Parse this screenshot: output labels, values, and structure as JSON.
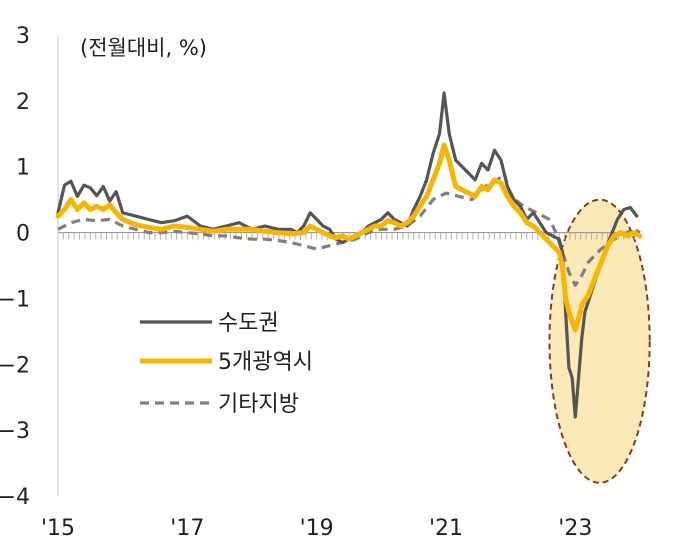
{
  "chart_data": {
    "type": "line",
    "unit_label": "(전월대비, %)",
    "ylim": [
      -4,
      3
    ],
    "y_ticks": [
      3,
      2,
      1,
      0,
      -1,
      -2,
      -3,
      -4
    ],
    "x_start": 2015.0,
    "x_end": 2024.0,
    "x_ticks": [
      {
        "x": 2015,
        "label": "'15"
      },
      {
        "x": 2017,
        "label": "'17"
      },
      {
        "x": 2019,
        "label": "'19"
      },
      {
        "x": 2021,
        "label": "'21"
      },
      {
        "x": 2023,
        "label": "'23"
      }
    ],
    "grid": false,
    "legend_position": "bottom-left",
    "highlight": {
      "shape": "ellipse",
      "color": "#fbe9b8",
      "x_range": [
        2022.6,
        2024.15
      ],
      "y_range": [
        -3.8,
        0.5
      ]
    },
    "series": [
      {
        "name": "수도권",
        "color": "#555555",
        "style": "solid",
        "points": [
          [
            2015.0,
            0.3
          ],
          [
            2015.1,
            0.72
          ],
          [
            2015.2,
            0.78
          ],
          [
            2015.3,
            0.55
          ],
          [
            2015.4,
            0.72
          ],
          [
            2015.5,
            0.68
          ],
          [
            2015.6,
            0.56
          ],
          [
            2015.7,
            0.7
          ],
          [
            2015.8,
            0.48
          ],
          [
            2015.9,
            0.62
          ],
          [
            2016.0,
            0.3
          ],
          [
            2016.2,
            0.25
          ],
          [
            2016.4,
            0.2
          ],
          [
            2016.6,
            0.15
          ],
          [
            2016.8,
            0.18
          ],
          [
            2017.0,
            0.25
          ],
          [
            2017.2,
            0.1
          ],
          [
            2017.4,
            0.05
          ],
          [
            2017.6,
            0.1
          ],
          [
            2017.8,
            0.15
          ],
          [
            2018.0,
            0.05
          ],
          [
            2018.2,
            0.1
          ],
          [
            2018.4,
            0.05
          ],
          [
            2018.6,
            0.05
          ],
          [
            2018.7,
            0.0
          ],
          [
            2018.8,
            0.1
          ],
          [
            2018.9,
            0.3
          ],
          [
            2019.0,
            0.2
          ],
          [
            2019.1,
            0.1
          ],
          [
            2019.2,
            0.05
          ],
          [
            2019.3,
            -0.1
          ],
          [
            2019.4,
            -0.15
          ],
          [
            2019.5,
            -0.1
          ],
          [
            2019.6,
            -0.05
          ],
          [
            2019.7,
            0.0
          ],
          [
            2019.8,
            0.1
          ],
          [
            2019.9,
            0.15
          ],
          [
            2020.0,
            0.2
          ],
          [
            2020.1,
            0.3
          ],
          [
            2020.2,
            0.2
          ],
          [
            2020.3,
            0.15
          ],
          [
            2020.4,
            0.1
          ],
          [
            2020.5,
            0.35
          ],
          [
            2020.6,
            0.55
          ],
          [
            2020.7,
            0.8
          ],
          [
            2020.8,
            1.2
          ],
          [
            2020.9,
            1.5
          ],
          [
            2020.97,
            2.12
          ],
          [
            2021.05,
            1.5
          ],
          [
            2021.15,
            1.1
          ],
          [
            2021.25,
            1.0
          ],
          [
            2021.35,
            0.9
          ],
          [
            2021.45,
            0.8
          ],
          [
            2021.55,
            1.05
          ],
          [
            2021.65,
            0.95
          ],
          [
            2021.75,
            1.25
          ],
          [
            2021.85,
            1.1
          ],
          [
            2021.95,
            0.7
          ],
          [
            2022.05,
            0.5
          ],
          [
            2022.15,
            0.4
          ],
          [
            2022.25,
            0.2
          ],
          [
            2022.35,
            0.3
          ],
          [
            2022.45,
            0.15
          ],
          [
            2022.55,
            0.0
          ],
          [
            2022.65,
            -0.05
          ],
          [
            2022.75,
            -0.1
          ],
          [
            2022.8,
            -0.3
          ],
          [
            2022.85,
            -1.2
          ],
          [
            2022.9,
            -2.05
          ],
          [
            2022.95,
            -2.2
          ],
          [
            2023.0,
            -2.8
          ],
          [
            2023.05,
            -2.2
          ],
          [
            2023.1,
            -1.6
          ],
          [
            2023.15,
            -1.2
          ],
          [
            2023.25,
            -0.9
          ],
          [
            2023.35,
            -0.6
          ],
          [
            2023.45,
            -0.3
          ],
          [
            2023.55,
            -0.05
          ],
          [
            2023.65,
            0.2
          ],
          [
            2023.75,
            0.35
          ],
          [
            2023.85,
            0.38
          ],
          [
            2023.95,
            0.25
          ]
        ]
      },
      {
        "name": "5개광역시",
        "color": "#f7b500",
        "style": "solid",
        "points": [
          [
            2015.0,
            0.25
          ],
          [
            2015.1,
            0.35
          ],
          [
            2015.2,
            0.5
          ],
          [
            2015.3,
            0.35
          ],
          [
            2015.4,
            0.45
          ],
          [
            2015.5,
            0.35
          ],
          [
            2015.6,
            0.4
          ],
          [
            2015.7,
            0.35
          ],
          [
            2015.8,
            0.42
          ],
          [
            2015.9,
            0.3
          ],
          [
            2016.0,
            0.2
          ],
          [
            2016.2,
            0.12
          ],
          [
            2016.4,
            0.08
          ],
          [
            2016.6,
            0.05
          ],
          [
            2016.8,
            0.1
          ],
          [
            2017.0,
            0.08
          ],
          [
            2017.2,
            0.05
          ],
          [
            2017.4,
            0.02
          ],
          [
            2017.6,
            0.05
          ],
          [
            2017.8,
            0.05
          ],
          [
            2018.0,
            0.05
          ],
          [
            2018.2,
            0.02
          ],
          [
            2018.4,
            0.0
          ],
          [
            2018.6,
            -0.02
          ],
          [
            2018.8,
            0.0
          ],
          [
            2018.9,
            0.1
          ],
          [
            2019.0,
            0.05
          ],
          [
            2019.1,
            0.0
          ],
          [
            2019.2,
            -0.05
          ],
          [
            2019.3,
            -0.08
          ],
          [
            2019.4,
            -0.05
          ],
          [
            2019.5,
            -0.1
          ],
          [
            2019.6,
            -0.05
          ],
          [
            2019.7,
            0.0
          ],
          [
            2019.8,
            0.05
          ],
          [
            2019.9,
            0.1
          ],
          [
            2020.0,
            0.1
          ],
          [
            2020.1,
            0.18
          ],
          [
            2020.2,
            0.15
          ],
          [
            2020.3,
            0.1
          ],
          [
            2020.4,
            0.15
          ],
          [
            2020.5,
            0.25
          ],
          [
            2020.6,
            0.4
          ],
          [
            2020.7,
            0.55
          ],
          [
            2020.8,
            0.8
          ],
          [
            2020.9,
            1.05
          ],
          [
            2020.97,
            1.33
          ],
          [
            2021.05,
            1.1
          ],
          [
            2021.15,
            0.7
          ],
          [
            2021.25,
            0.65
          ],
          [
            2021.35,
            0.6
          ],
          [
            2021.45,
            0.55
          ],
          [
            2021.55,
            0.7
          ],
          [
            2021.65,
            0.65
          ],
          [
            2021.75,
            0.8
          ],
          [
            2021.85,
            0.75
          ],
          [
            2021.95,
            0.55
          ],
          [
            2022.05,
            0.4
          ],
          [
            2022.15,
            0.3
          ],
          [
            2022.25,
            0.15
          ],
          [
            2022.35,
            0.1
          ],
          [
            2022.45,
            0.0
          ],
          [
            2022.55,
            -0.1
          ],
          [
            2022.65,
            -0.2
          ],
          [
            2022.75,
            -0.3
          ],
          [
            2022.8,
            -0.5
          ],
          [
            2022.85,
            -1.0
          ],
          [
            2022.9,
            -1.2
          ],
          [
            2022.95,
            -1.35
          ],
          [
            2023.0,
            -1.48
          ],
          [
            2023.05,
            -1.3
          ],
          [
            2023.1,
            -1.1
          ],
          [
            2023.2,
            -0.95
          ],
          [
            2023.3,
            -0.7
          ],
          [
            2023.4,
            -0.45
          ],
          [
            2023.5,
            -0.2
          ],
          [
            2023.6,
            -0.05
          ],
          [
            2023.7,
            0.0
          ],
          [
            2023.8,
            -0.05
          ],
          [
            2023.9,
            0.0
          ],
          [
            2024.0,
            -0.05
          ]
        ]
      },
      {
        "name": "기타지방",
        "color": "#808080",
        "style": "dashed",
        "points": [
          [
            2015.0,
            0.05
          ],
          [
            2015.2,
            0.15
          ],
          [
            2015.4,
            0.2
          ],
          [
            2015.6,
            0.18
          ],
          [
            2015.8,
            0.2
          ],
          [
            2016.0,
            0.1
          ],
          [
            2016.2,
            0.05
          ],
          [
            2016.4,
            0.0
          ],
          [
            2016.6,
            0.0
          ],
          [
            2016.8,
            0.02
          ],
          [
            2017.0,
            0.0
          ],
          [
            2017.2,
            -0.02
          ],
          [
            2017.4,
            -0.05
          ],
          [
            2017.6,
            -0.05
          ],
          [
            2017.8,
            -0.08
          ],
          [
            2018.0,
            -0.1
          ],
          [
            2018.2,
            -0.1
          ],
          [
            2018.4,
            -0.12
          ],
          [
            2018.6,
            -0.15
          ],
          [
            2018.8,
            -0.2
          ],
          [
            2019.0,
            -0.25
          ],
          [
            2019.2,
            -0.2
          ],
          [
            2019.4,
            -0.15
          ],
          [
            2019.6,
            -0.1
          ],
          [
            2019.8,
            0.0
          ],
          [
            2020.0,
            0.05
          ],
          [
            2020.2,
            0.05
          ],
          [
            2020.4,
            0.1
          ],
          [
            2020.6,
            0.25
          ],
          [
            2020.8,
            0.5
          ],
          [
            2021.0,
            0.6
          ],
          [
            2021.2,
            0.55
          ],
          [
            2021.4,
            0.5
          ],
          [
            2021.6,
            0.7
          ],
          [
            2021.8,
            0.8
          ],
          [
            2021.9,
            0.9
          ],
          [
            2022.0,
            0.55
          ],
          [
            2022.2,
            0.4
          ],
          [
            2022.4,
            0.3
          ],
          [
            2022.6,
            0.2
          ],
          [
            2022.7,
            0.0
          ],
          [
            2022.8,
            -0.3
          ],
          [
            2022.9,
            -0.6
          ],
          [
            2023.0,
            -0.8
          ],
          [
            2023.1,
            -0.65
          ],
          [
            2023.2,
            -0.45
          ],
          [
            2023.4,
            -0.25
          ],
          [
            2023.6,
            -0.1
          ],
          [
            2023.8,
            0.0
          ],
          [
            2023.9,
            0.05
          ],
          [
            2024.0,
            0.0
          ]
        ]
      }
    ]
  }
}
